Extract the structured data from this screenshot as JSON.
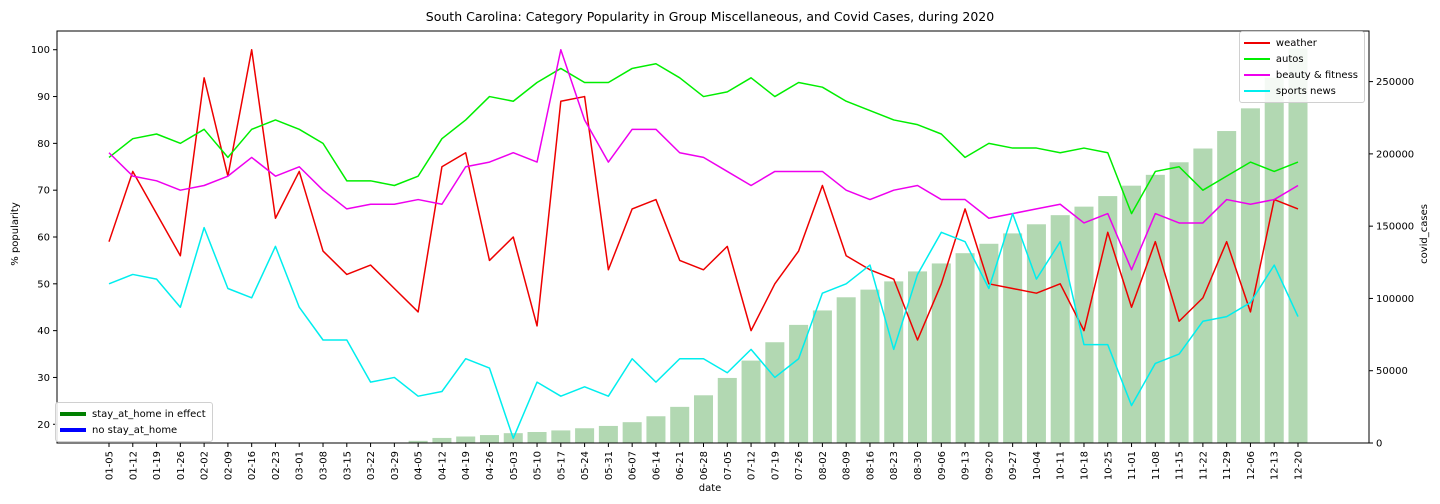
{
  "chart_data": {
    "type": "line",
    "title": "South Carolina: Category Popularity in Group Miscellaneous, and Covid Cases, during 2020",
    "xlabel": "date",
    "ylabel": "% popularity",
    "y2label": "covid_cases",
    "ylim": [
      16,
      104
    ],
    "y2lim": [
      0,
      285000
    ],
    "yticks": [
      20,
      30,
      40,
      50,
      60,
      70,
      80,
      90,
      100
    ],
    "y2ticks": [
      0,
      50000,
      100000,
      150000,
      200000,
      250000
    ],
    "categories": [
      "01-05",
      "01-12",
      "01-19",
      "01-26",
      "02-02",
      "02-09",
      "02-16",
      "02-23",
      "03-01",
      "03-08",
      "03-15",
      "03-22",
      "03-29",
      "04-05",
      "04-12",
      "04-19",
      "04-26",
      "05-03",
      "05-10",
      "05-17",
      "05-24",
      "05-31",
      "06-07",
      "06-14",
      "06-21",
      "06-28",
      "07-05",
      "07-12",
      "07-19",
      "07-26",
      "08-02",
      "08-09",
      "08-16",
      "08-23",
      "08-30",
      "09-06",
      "09-13",
      "09-20",
      "09-27",
      "10-04",
      "10-11",
      "10-18",
      "10-25",
      "11-01",
      "11-08",
      "11-15",
      "11-22",
      "11-29",
      "12-06",
      "12-13",
      "12-20"
    ],
    "series": [
      {
        "name": "weather",
        "color": "#ee0000",
        "values": [
          59,
          74,
          65,
          56,
          94,
          73,
          100,
          64,
          74,
          57,
          52,
          54,
          49,
          44,
          75,
          78,
          55,
          60,
          41,
          89,
          90,
          53,
          66,
          68,
          55,
          53,
          58,
          40,
          50,
          57,
          71,
          56,
          53,
          51,
          38,
          50,
          66,
          50,
          49,
          48,
          50,
          40,
          61,
          45,
          59,
          42,
          47,
          59,
          44,
          68,
          66
        ]
      },
      {
        "name": "autos",
        "color": "#00ee00",
        "values": [
          77,
          81,
          82,
          80,
          83,
          77,
          83,
          85,
          83,
          80,
          72,
          72,
          71,
          73,
          81,
          85,
          90,
          89,
          93,
          96,
          93,
          93,
          96,
          97,
          94,
          90,
          91,
          94,
          90,
          93,
          92,
          89,
          87,
          85,
          84,
          82,
          77,
          80,
          79,
          79,
          78,
          79,
          78,
          65,
          74,
          75,
          70,
          73,
          76,
          74,
          76
        ]
      },
      {
        "name": "beauty & fitness",
        "color": "#ee00ee",
        "values": [
          78,
          73,
          72,
          70,
          71,
          73,
          77,
          73,
          75,
          70,
          66,
          67,
          67,
          68,
          67,
          75,
          76,
          78,
          76,
          100,
          85,
          76,
          83,
          83,
          78,
          77,
          74,
          71,
          74,
          74,
          74,
          70,
          68,
          70,
          71,
          68,
          68,
          64,
          65,
          66,
          67,
          63,
          65,
          53,
          65,
          63,
          63,
          68,
          67,
          68,
          71
        ]
      },
      {
        "name": "sports news",
        "color": "#00eeee",
        "values": [
          50,
          52,
          51,
          45,
          62,
          49,
          47,
          58,
          45,
          38,
          38,
          29,
          30,
          26,
          27,
          34,
          32,
          17,
          29,
          26,
          28,
          26,
          34,
          29,
          34,
          34,
          31,
          36,
          30,
          34,
          48,
          50,
          54,
          36,
          52,
          61,
          59,
          49,
          65,
          51,
          59,
          37,
          37,
          24,
          33,
          35,
          42,
          43,
          46,
          54,
          43
        ]
      }
    ],
    "bars": {
      "name": "covid_cases",
      "color": "#b2d8b2",
      "values": [
        0,
        0,
        0,
        0,
        0,
        0,
        0,
        0,
        0,
        0,
        0,
        0,
        100,
        1500,
        3500,
        4500,
        5500,
        6800,
        7600,
        8700,
        10200,
        11800,
        14400,
        18500,
        25000,
        33000,
        45000,
        57000,
        69700,
        81700,
        91700,
        100800,
        106100,
        111800,
        118700,
        124200,
        131300,
        137800,
        145000,
        151300,
        157600,
        163500,
        170800,
        178000,
        185500,
        194200,
        203700,
        215800,
        231500,
        252700,
        273000
      ]
    },
    "legend": {
      "placement": "top-right",
      "entries": [
        "weather",
        "autos",
        "beauty & fitness",
        "sports news"
      ]
    },
    "legend2": {
      "placement": "bottom-left",
      "entries": [
        {
          "label": "stay_at_home in effect",
          "color": "#008000"
        },
        {
          "label": "no stay_at_home",
          "color": "#0000ff"
        }
      ]
    },
    "grid": false
  }
}
